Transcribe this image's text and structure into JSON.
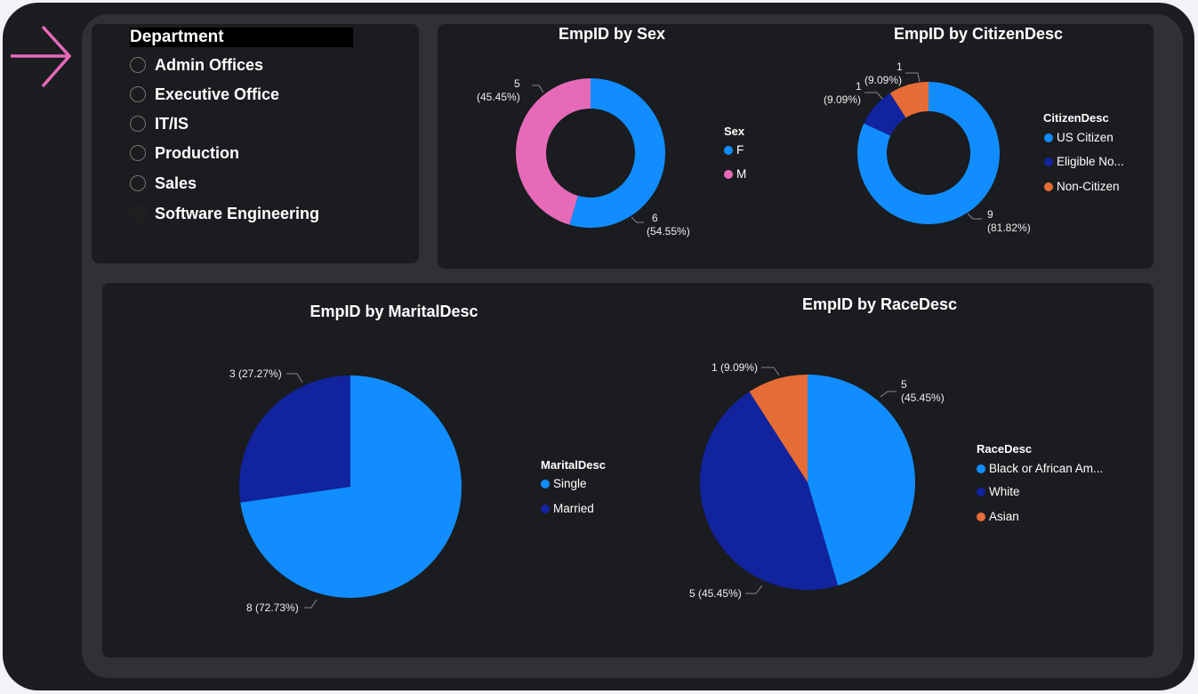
{
  "colors": {
    "blue": "#118DFF",
    "navy": "#12239E",
    "orange": "#E66C37",
    "pink": "#E66AB8",
    "arrow": "#E66AB8"
  },
  "slicer": {
    "title": "Department",
    "options": [
      {
        "label": "Admin Offices",
        "selected": false
      },
      {
        "label": "Executive Office",
        "selected": false
      },
      {
        "label": "IT/IS",
        "selected": false
      },
      {
        "label": "Production",
        "selected": false
      },
      {
        "label": "Sales",
        "selected": false
      },
      {
        "label": "Software Engineering",
        "selected": false
      }
    ]
  },
  "chart_data": [
    {
      "type": "donut",
      "title": "EmpID by Sex",
      "legend_title": "Sex",
      "legend_position": "right",
      "slices": [
        {
          "name": "F",
          "value": 6,
          "label": "6",
          "pct": "(54.55%)",
          "color": "#118DFF"
        },
        {
          "name": "M",
          "value": 5,
          "label": "5",
          "pct": "(45.45%)",
          "color": "#E66AB8"
        }
      ]
    },
    {
      "type": "donut",
      "title": "EmpID by CitizenDesc",
      "legend_title": "CitizenDesc",
      "legend_position": "right",
      "slices": [
        {
          "name": "US Citizen",
          "value": 9,
          "label": "9",
          "pct": "(81.82%)",
          "color": "#118DFF"
        },
        {
          "name": "Eligible No...",
          "value": 1,
          "label": "1",
          "pct": "(9.09%)",
          "color": "#12239E"
        },
        {
          "name": "Non-Citizen",
          "value": 1,
          "label": "1",
          "pct": "(9.09%)",
          "color": "#E66C37"
        }
      ]
    },
    {
      "type": "pie",
      "title": "EmpID by MaritalDesc",
      "legend_title": "MaritalDesc",
      "legend_position": "right",
      "slices": [
        {
          "name": "Single",
          "value": 8,
          "label": "8 (72.73%)",
          "color": "#118DFF"
        },
        {
          "name": "Married",
          "value": 3,
          "label": "3 (27.27%)",
          "color": "#12239E"
        }
      ]
    },
    {
      "type": "pie",
      "title": "EmpID by RaceDesc",
      "legend_title": "RaceDesc",
      "legend_position": "right",
      "slices": [
        {
          "name": "Black or African Am...",
          "value": 5,
          "label": "5",
          "pct": "(45.45%)",
          "color": "#118DFF"
        },
        {
          "name": "White",
          "value": 5,
          "label": "5 (45.45%)",
          "color": "#12239E"
        },
        {
          "name": "Asian",
          "value": 1,
          "label": "1 (9.09%)",
          "color": "#E66C37"
        }
      ]
    }
  ]
}
